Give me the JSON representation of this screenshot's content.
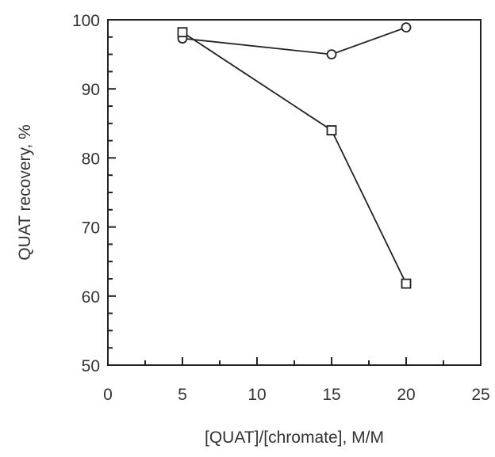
{
  "chart_data": {
    "type": "line",
    "title": "",
    "xlabel": "[QUAT]/[chromate], M/M",
    "ylabel": "QUAT recovery, %",
    "xlim": [
      0,
      25
    ],
    "ylim": [
      50,
      100
    ],
    "x_major_ticks": [
      0,
      5,
      10,
      15,
      20,
      25
    ],
    "x_tick_labels": [
      "0",
      "5",
      "10",
      "15",
      "20",
      "25"
    ],
    "x_minor_step": 2.5,
    "y_major_ticks": [
      50,
      60,
      70,
      80,
      90,
      100
    ],
    "y_tick_labels": [
      "50",
      "60",
      "70",
      "80",
      "90",
      "100"
    ],
    "y_minor_step": 2.5,
    "grid": false,
    "legend": "none",
    "series": [
      {
        "marker": "circle",
        "x": [
          5,
          15,
          20
        ],
        "y": [
          97.3,
          95.0,
          98.9
        ]
      },
      {
        "marker": "square",
        "x": [
          5,
          15,
          20
        ],
        "y": [
          98.2,
          84.0,
          61.8
        ]
      }
    ]
  }
}
